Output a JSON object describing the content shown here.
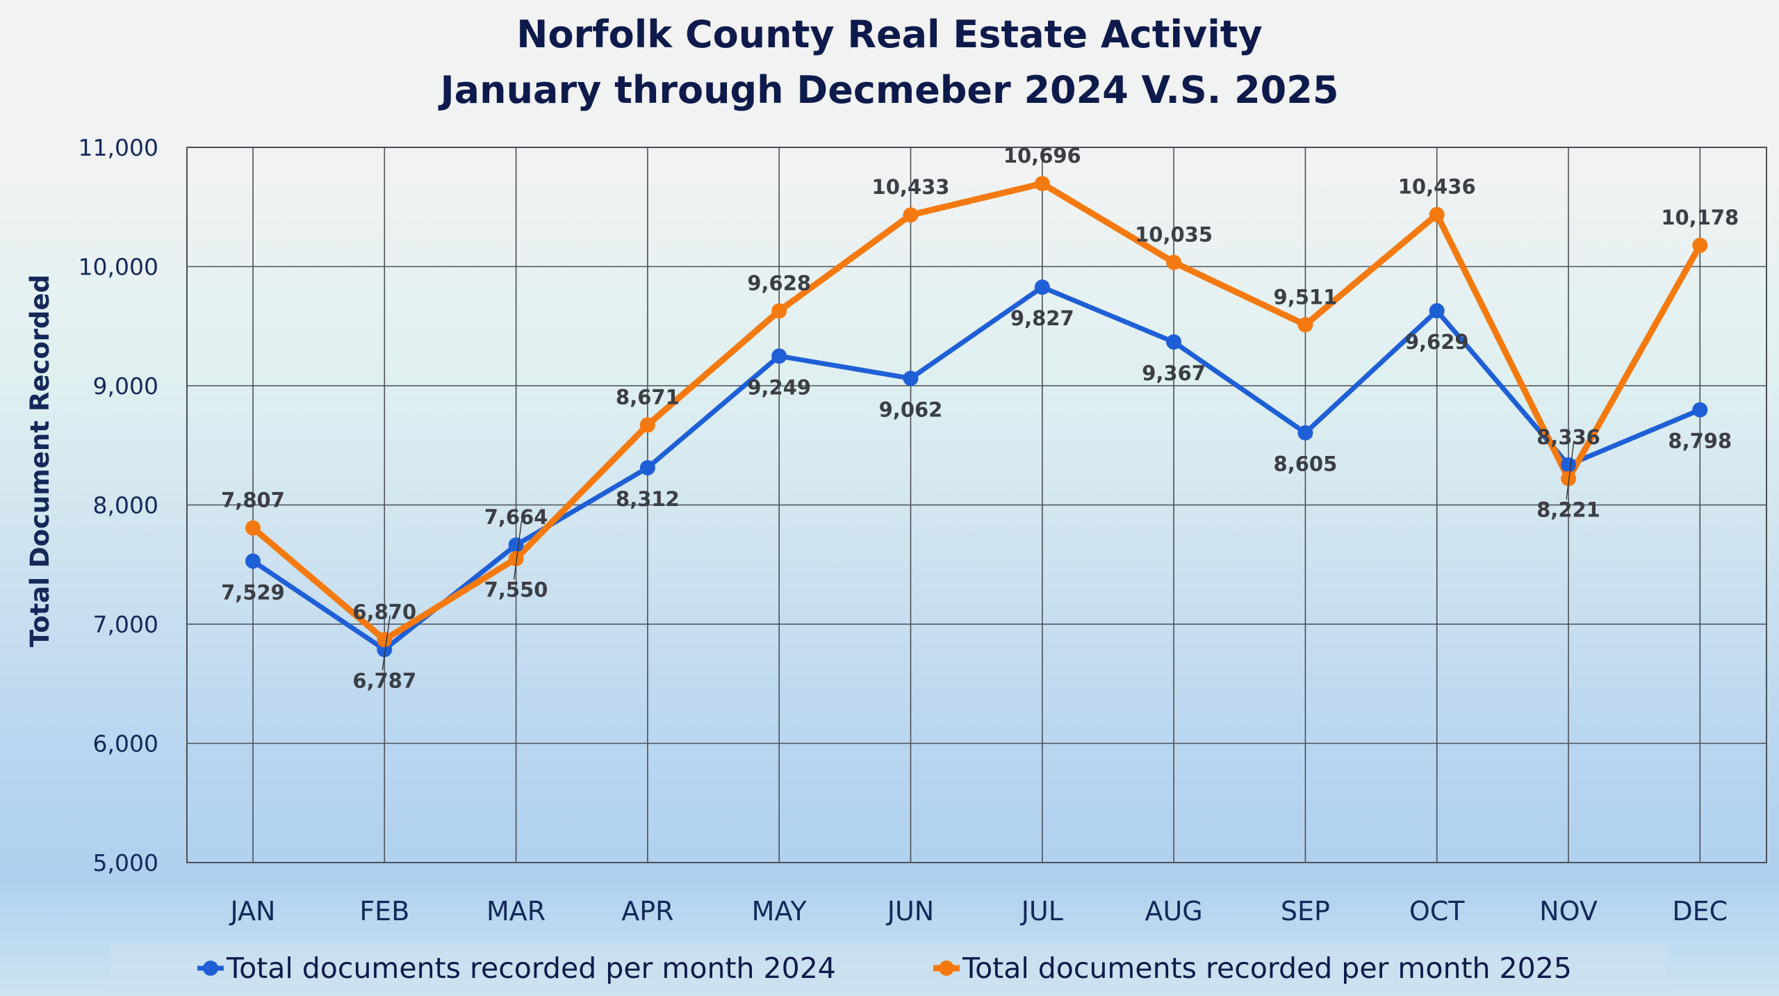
{
  "chart_data": {
    "type": "line",
    "title": [
      "Norfolk County Real Estate Activity",
      "January through Decmeber 2024 V.S. 2025"
    ],
    "xlabel": "",
    "ylabel": "Total Document Recorded",
    "categories": [
      "JAN",
      "FEB",
      "MAR",
      "APR",
      "MAY",
      "JUN",
      "JUL",
      "AUG",
      "SEP",
      "OCT",
      "NOV",
      "DEC"
    ],
    "ylim": [
      5000,
      11000
    ],
    "yticks": [
      5000,
      6000,
      7000,
      8000,
      9000,
      10000,
      11000
    ],
    "ytick_labels": [
      "5,000",
      "6,000",
      "7,000",
      "8,000",
      "9,000",
      "10,000",
      "11,000"
    ],
    "grid": true,
    "legend_position": "bottom",
    "series": [
      {
        "name": "Total documents recorded per month 2024",
        "color": "#1f5fd6",
        "values": [
          7529,
          6787,
          7664,
          8312,
          9249,
          9062,
          9827,
          9367,
          8605,
          9629,
          8336,
          8798
        ],
        "labels": [
          "7,529",
          "6,787",
          "7,664",
          "8,312",
          "9,249",
          "9,062",
          "9,827",
          "9,367",
          "8,605",
          "9,629",
          "8,336",
          "8,798"
        ],
        "label_side": [
          "below",
          "below",
          "above",
          "below",
          "below",
          "below",
          "below",
          "below",
          "below",
          "below",
          "above",
          "below"
        ]
      },
      {
        "name": "Total documents recorded per month 2025",
        "color": "#f47a10",
        "values": [
          7807,
          6870,
          7550,
          8671,
          9628,
          10433,
          10696,
          10035,
          9511,
          10436,
          8221,
          10178
        ],
        "labels": [
          "7,807",
          "6,870",
          "7,550",
          "8,671",
          "9,628",
          "10,433",
          "10,696",
          "10,035",
          "9,511",
          "10,436",
          "8,221",
          "10,178"
        ],
        "label_side": [
          "above",
          "above",
          "below",
          "above",
          "above",
          "above",
          "above",
          "above",
          "above",
          "above",
          "below",
          "above"
        ]
      }
    ]
  }
}
